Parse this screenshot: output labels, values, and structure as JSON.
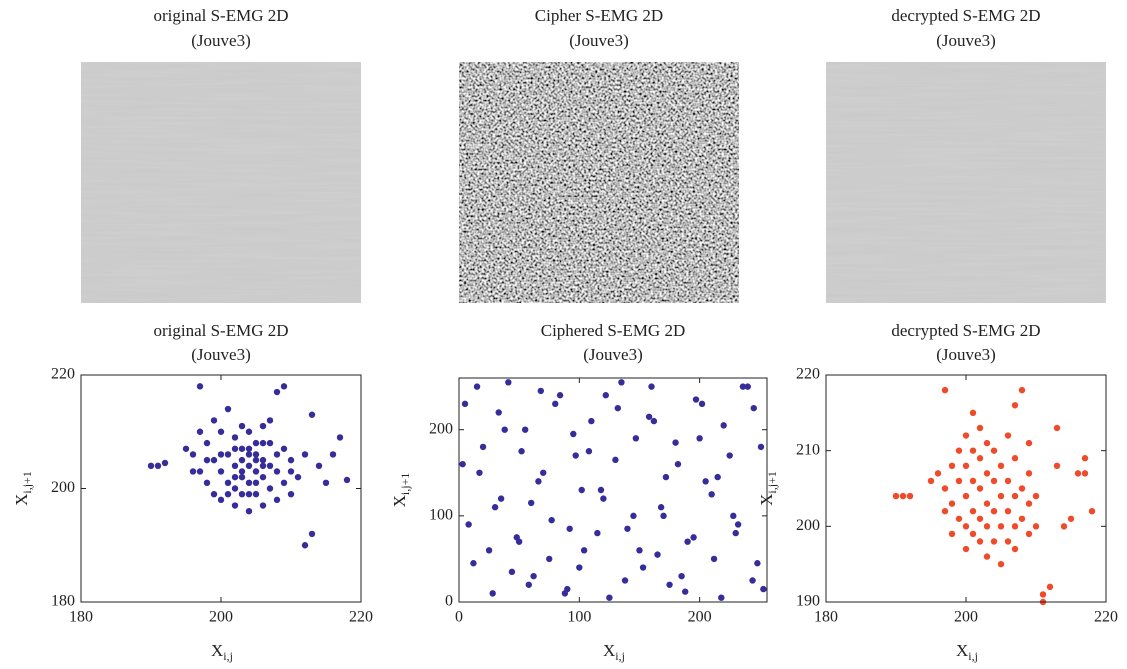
{
  "chart_data": [
    {
      "type": "image",
      "title": "original S-EMG 2D",
      "subtitle": "(Jouve3)"
    },
    {
      "type": "image",
      "title": "Cipher S-EMG 2D",
      "subtitle": "(Jouve3)"
    },
    {
      "type": "image",
      "title": "decrypted S-EMG 2D",
      "subtitle": "(Jouve3)"
    },
    {
      "type": "scatter",
      "title": "original S-EMG 2D",
      "subtitle": "(Jouve3)",
      "color": "#362c9a",
      "xlabel": {
        "text": "X",
        "sub": "i,j"
      },
      "ylabel": {
        "text": "X",
        "sub": "i,j+1"
      },
      "xlim": [
        180,
        220
      ],
      "xticks": [
        180,
        200,
        220
      ],
      "ylim": [
        180,
        220
      ],
      "yticks": [
        180,
        200,
        220
      ],
      "x": [
        190,
        191,
        192,
        195,
        196,
        197,
        197,
        198,
        198,
        199,
        199,
        200,
        200,
        200,
        201,
        201,
        201,
        202,
        202,
        202,
        202,
        203,
        203,
        203,
        203,
        204,
        204,
        204,
        204,
        204,
        205,
        205,
        205,
        205,
        206,
        206,
        206,
        206,
        207,
        207,
        207,
        208,
        208,
        208,
        209,
        209,
        210,
        210,
        211,
        212,
        213,
        213,
        214,
        215,
        216,
        217,
        218,
        197,
        199,
        201,
        203,
        205,
        207,
        209,
        200,
        202,
        204,
        206,
        208,
        198,
        210,
        212,
        196,
        203,
        205,
        204,
        202,
        206
      ],
      "values": [
        204,
        204,
        204.5,
        207,
        206,
        218,
        203,
        201,
        208,
        199,
        205,
        210,
        203,
        198,
        206,
        201,
        214,
        204,
        197,
        209,
        200,
        205,
        211,
        199,
        202,
        204,
        207,
        196,
        201,
        210,
        203,
        206,
        199,
        208,
        205,
        202,
        211,
        197,
        204,
        200,
        208,
        217,
        203,
        206,
        218,
        201,
        205,
        199,
        202,
        190,
        192,
        213,
        204,
        201,
        206,
        209,
        201.5,
        210,
        212,
        199,
        207,
        201,
        212,
        207,
        206,
        207,
        199,
        208,
        198,
        205,
        203,
        206,
        203,
        203,
        205,
        206,
        202,
        204
      ]
    },
    {
      "type": "scatter",
      "title": "Ciphered S-EMG 2D",
      "subtitle": "(Jouve3)",
      "color": "#362c9a",
      "xlabel": {
        "text": "X",
        "sub": "i,j"
      },
      "ylabel": {
        "text": "X",
        "sub": "i,j+1"
      },
      "xlim": [
        0,
        256
      ],
      "xticks": [
        0,
        100,
        200
      ],
      "ylim": [
        0,
        260
      ],
      "yticks": [
        0,
        100,
        200
      ],
      "x": [
        5,
        12,
        20,
        28,
        35,
        41,
        48,
        55,
        62,
        70,
        77,
        84,
        90,
        97,
        104,
        110,
        118,
        125,
        132,
        140,
        147,
        153,
        160,
        168,
        175,
        182,
        190,
        197,
        205,
        212,
        220,
        228,
        236,
        244,
        251,
        8,
        17,
        25,
        33,
        44,
        52,
        60,
        68,
        75,
        88,
        95,
        102,
        115,
        122,
        130,
        138,
        145,
        158,
        165,
        172,
        180,
        188,
        195,
        202,
        210,
        218,
        225,
        232,
        240,
        248,
        3,
        15,
        30,
        38,
        50,
        58,
        66,
        80,
        92,
        100,
        108,
        120,
        135,
        150,
        162,
        170,
        185,
        200,
        215,
        230,
        245,
        253
      ],
      "values": [
        230,
        45,
        180,
        10,
        120,
        255,
        75,
        200,
        30,
        150,
        95,
        240,
        15,
        170,
        60,
        210,
        130,
        5,
        225,
        85,
        190,
        40,
        250,
        110,
        20,
        160,
        70,
        235,
        140,
        50,
        205,
        100,
        250,
        25,
        180,
        90,
        150,
        60,
        220,
        35,
        175,
        115,
        245,
        50,
        10,
        195,
        130,
        80,
        240,
        165,
        25,
        100,
        215,
        55,
        145,
        185,
        12,
        75,
        230,
        125,
        5,
        170,
        90,
        250,
        45,
        160,
        250,
        110,
        200,
        70,
        20,
        140,
        230,
        85,
        40,
        175,
        120,
        255,
        60,
        210,
        100,
        30,
        190,
        145,
        80,
        225,
        15
      ]
    },
    {
      "type": "scatter",
      "title": "decrypted S-EMG 2D",
      "subtitle": "(Jouve3)",
      "color": "#ee4b2b",
      "xlabel": {
        "text": "X",
        "sub": "i,j"
      },
      "ylabel": {
        "text": "X",
        "sub": "i,j+1"
      },
      "xlim": [
        180,
        220
      ],
      "xticks": [
        180,
        200,
        220
      ],
      "ylim": [
        190,
        220
      ],
      "yticks": [
        190,
        200,
        210,
        220
      ],
      "x": [
        190,
        191,
        192,
        195,
        196,
        197,
        197,
        197,
        198,
        198,
        198,
        199,
        199,
        200,
        200,
        200,
        200,
        200,
        201,
        201,
        201,
        201,
        201,
        202,
        202,
        202,
        202,
        203,
        203,
        203,
        203,
        203,
        204,
        204,
        204,
        204,
        205,
        205,
        205,
        205,
        206,
        206,
        206,
        206,
        207,
        207,
        207,
        207,
        208,
        208,
        208,
        209,
        209,
        209,
        210,
        210,
        211,
        211,
        212,
        213,
        213,
        214,
        215,
        216,
        217,
        217,
        218,
        199,
        209,
        202,
        207
      ],
      "values": [
        204,
        204,
        204,
        206,
        207,
        218,
        205,
        202,
        199,
        203,
        208,
        206,
        201,
        212,
        208,
        204,
        200,
        197,
        215,
        210,
        206,
        202,
        199,
        209,
        205,
        201,
        198,
        211,
        207,
        203,
        200,
        196,
        210,
        206,
        202,
        198,
        208,
        204,
        200,
        195,
        212,
        206,
        202,
        198,
        209,
        204,
        200,
        197,
        218,
        205,
        201,
        207,
        203,
        199,
        204,
        200,
        190,
        191,
        192,
        213,
        208,
        200,
        201,
        207,
        207,
        209,
        202,
        210,
        211,
        213,
        216
      ]
    }
  ]
}
